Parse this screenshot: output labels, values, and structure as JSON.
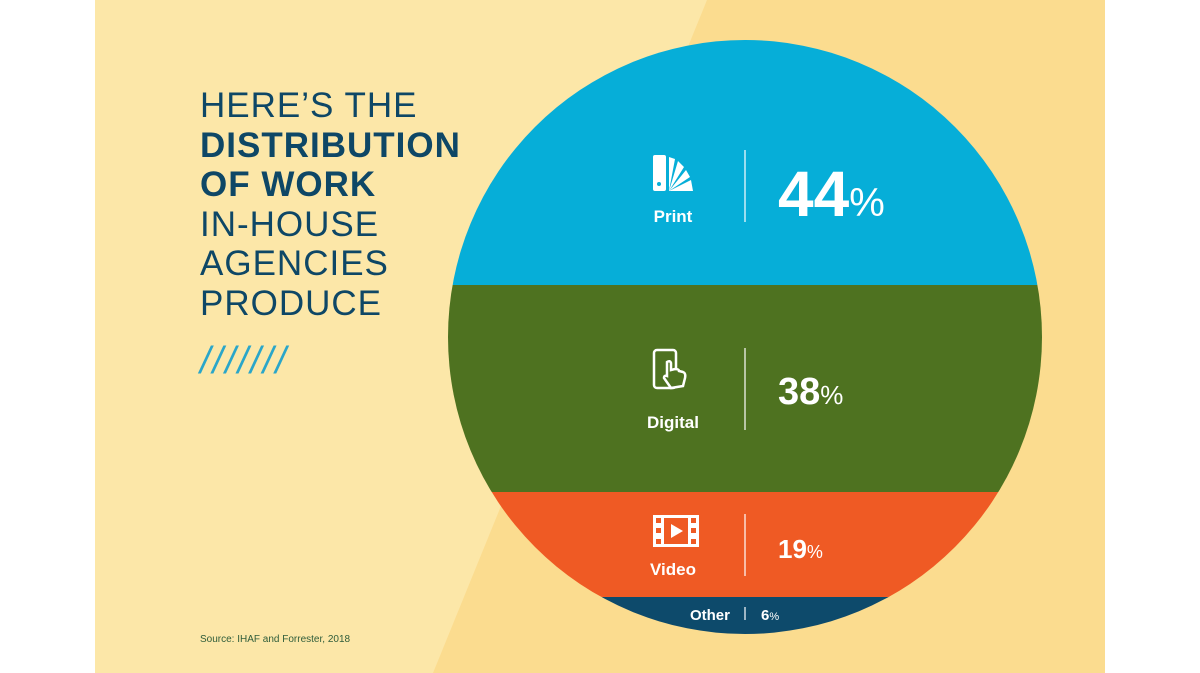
{
  "title": {
    "line1": "HERE’S THE",
    "line2": "DISTRIBUTION",
    "line3": "OF WORK",
    "line4": "IN-HOUSE",
    "line5": "AGENCIES",
    "line6": "PRODUCE"
  },
  "decoration": "///////",
  "source": "Source: IHAF and Forrester, 2018",
  "colors": {
    "print": "#06aed8",
    "digital": "#4e7220",
    "video": "#ef5a24",
    "other": "#0d4a6b",
    "bg_light": "#fce7a8",
    "bg_dark": "#fbdc8f",
    "title": "#0e4766"
  },
  "chart_data": {
    "type": "pie",
    "style": "horizontal-band circle",
    "title": "Here's the distribution of work in-house agencies produce",
    "categories": [
      "Print",
      "Digital",
      "Video",
      "Other"
    ],
    "values": [
      44,
      38,
      19,
      6
    ],
    "unit": "%",
    "labels": [
      "44",
      "38",
      "19",
      "6"
    ],
    "percent_sign": "%",
    "icons": [
      "swatch-fan-icon",
      "touch-phone-icon",
      "film-play-icon",
      null
    ]
  }
}
